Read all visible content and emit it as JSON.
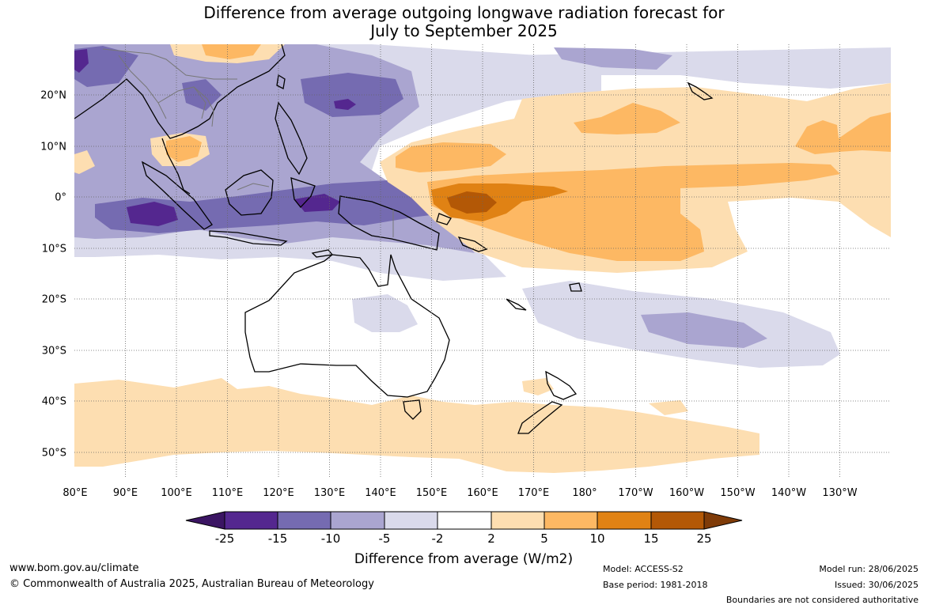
{
  "title_line1": "Difference from average outgoing longwave radiation forecast for",
  "title_line2": "July to September 2025",
  "lat_labels": [
    "20°N",
    "10°N",
    "0°",
    "10°S",
    "20°S",
    "30°S",
    "40°S",
    "50°S"
  ],
  "lon_labels": [
    "80°E",
    "90°E",
    "100°E",
    "110°E",
    "120°E",
    "130°E",
    "140°E",
    "150°E",
    "160°E",
    "170°E",
    "180°",
    "170°W",
    "160°W",
    "150°W",
    "140°W",
    "130°W"
  ],
  "colorbar": {
    "label": "Difference from average (W/m2)",
    "tick_labels": [
      "-25",
      "-15",
      "-10",
      "-5",
      "-2",
      "2",
      "5",
      "10",
      "15",
      "25"
    ],
    "colors": [
      "#3b1563",
      "#54278f",
      "#756bb1",
      "#aaa5d0",
      "#dadaeb",
      "#ffffff",
      "#fddeb1",
      "#fdb863",
      "#e08214",
      "#b35806",
      "#7f3b08"
    ]
  },
  "footer": {
    "website": "www.bom.gov.au/climate",
    "copyright": "© Commonwealth of Australia 2025, Australian Bureau of Meteorology",
    "model": "Model: ACCESS-S2",
    "base_period": "Base period: 1981-2018",
    "model_run": "Model run: 28/06/2025",
    "issued": "Issued: 30/06/2025",
    "disclaimer": "Boundaries are not considered authoritative"
  }
}
